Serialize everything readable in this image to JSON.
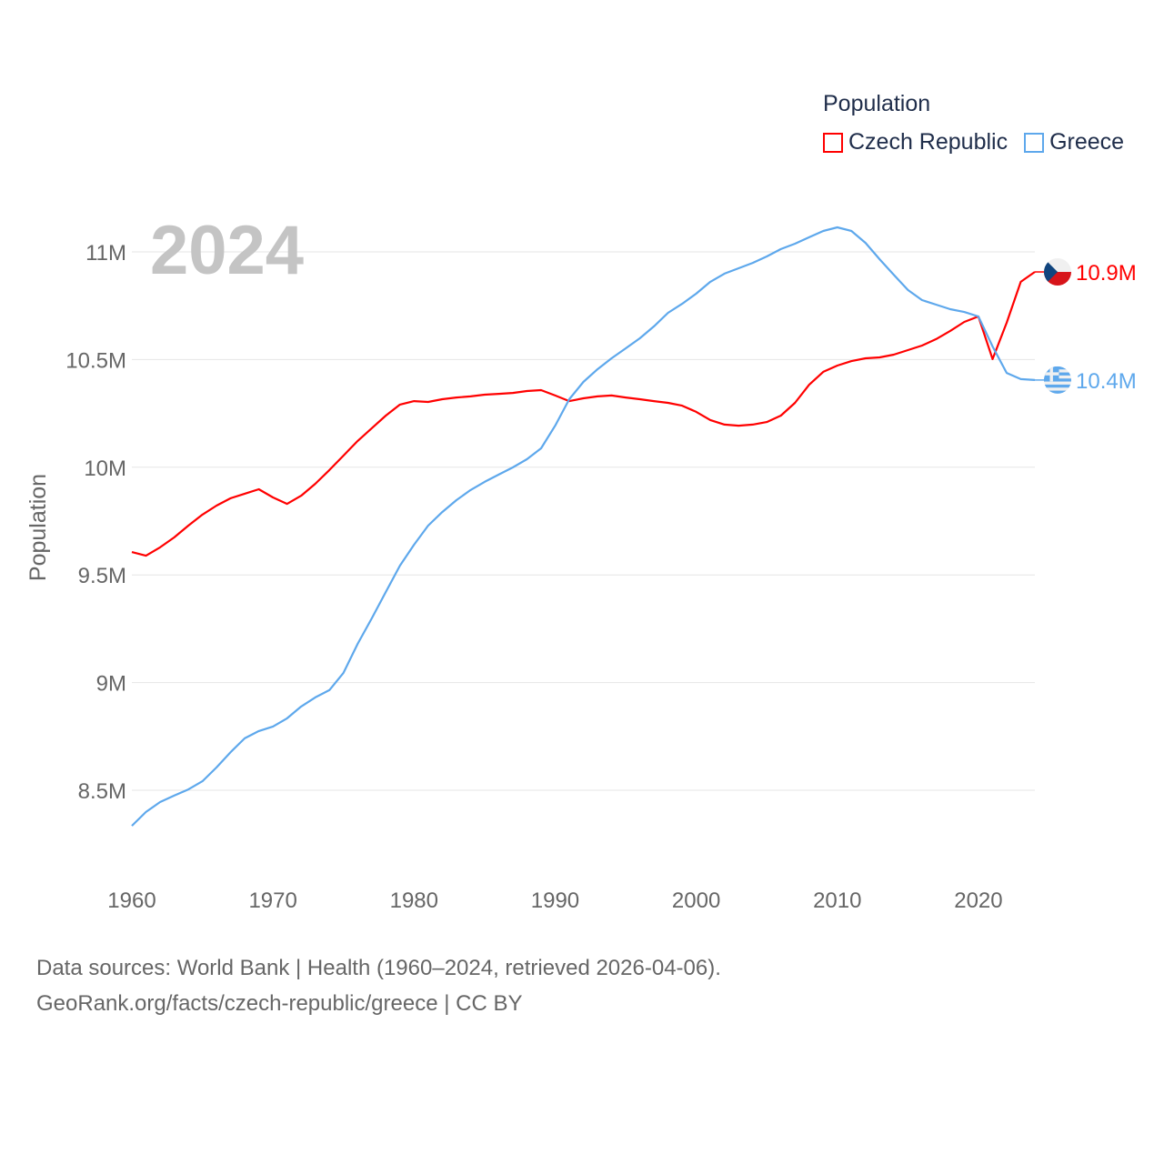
{
  "legend": {
    "title": "Population",
    "items": [
      {
        "label": "Czech Republic",
        "color": "#ff0000"
      },
      {
        "label": "Greece",
        "color": "#5ea8ec"
      }
    ]
  },
  "year_watermark": "2024",
  "footer": {
    "line1": "Data sources: World Bank | Health (1960–2024, retrieved 2026-04-06).",
    "line2": "GeoRank.org/facts/czech-republic/greece | CC BY"
  },
  "chart_data": {
    "type": "line",
    "title": "Population",
    "xlabel": "",
    "ylabel": "Population",
    "xlim": [
      1960,
      2024
    ],
    "ylim": [
      8.25,
      11.2
    ],
    "x_ticks": [
      1960,
      1970,
      1980,
      1990,
      2000,
      2010,
      2020
    ],
    "x_tick_labels": [
      "1960",
      "1970",
      "1980",
      "1990",
      "2000",
      "2010",
      "2020"
    ],
    "y_ticks": [
      8.5,
      9,
      9.5,
      10,
      10.5,
      11
    ],
    "y_tick_labels": [
      "8.5M",
      "9M",
      "9.5M",
      "10M",
      "10.5M",
      "11M"
    ],
    "grid": true,
    "legend_position": "top-right",
    "x_start": 1960,
    "series": [
      {
        "name": "Czech Republic",
        "color": "#ff0000",
        "end_label": "10.9M",
        "flag": "czech",
        "values": [
          9.606,
          9.589,
          9.628,
          9.674,
          9.729,
          9.78,
          9.822,
          9.856,
          9.877,
          9.898,
          9.86,
          9.83,
          9.868,
          9.923,
          9.987,
          10.054,
          10.122,
          10.181,
          10.24,
          10.291,
          10.307,
          10.303,
          10.316,
          10.324,
          10.329,
          10.337,
          10.341,
          10.345,
          10.354,
          10.358,
          10.333,
          10.307,
          10.32,
          10.329,
          10.333,
          10.324,
          10.316,
          10.307,
          10.299,
          10.286,
          10.257,
          10.219,
          10.198,
          10.193,
          10.198,
          10.21,
          10.24,
          10.299,
          10.383,
          10.443,
          10.472,
          10.493,
          10.506,
          10.51,
          10.523,
          10.544,
          10.565,
          10.595,
          10.633,
          10.675,
          10.7,
          10.502,
          10.671,
          10.861,
          10.907
        ]
      },
      {
        "name": "Greece",
        "color": "#5ea8ec",
        "end_label": "10.4M",
        "flag": "greece",
        "values": [
          8.335,
          8.399,
          8.445,
          8.475,
          8.504,
          8.542,
          8.606,
          8.677,
          8.741,
          8.775,
          8.796,
          8.834,
          8.889,
          8.931,
          8.965,
          9.045,
          9.18,
          9.298,
          9.421,
          9.543,
          9.64,
          9.729,
          9.792,
          9.847,
          9.894,
          9.932,
          9.966,
          9.999,
          10.037,
          10.088,
          10.193,
          10.316,
          10.396,
          10.455,
          10.506,
          10.552,
          10.599,
          10.654,
          10.717,
          10.759,
          10.806,
          10.861,
          10.899,
          10.924,
          10.949,
          10.979,
          11.013,
          11.038,
          11.068,
          11.097,
          11.114,
          11.097,
          11.042,
          10.966,
          10.894,
          10.823,
          10.776,
          10.755,
          10.734,
          10.721,
          10.7,
          10.561,
          10.438,
          10.409,
          10.405
        ]
      }
    ]
  }
}
